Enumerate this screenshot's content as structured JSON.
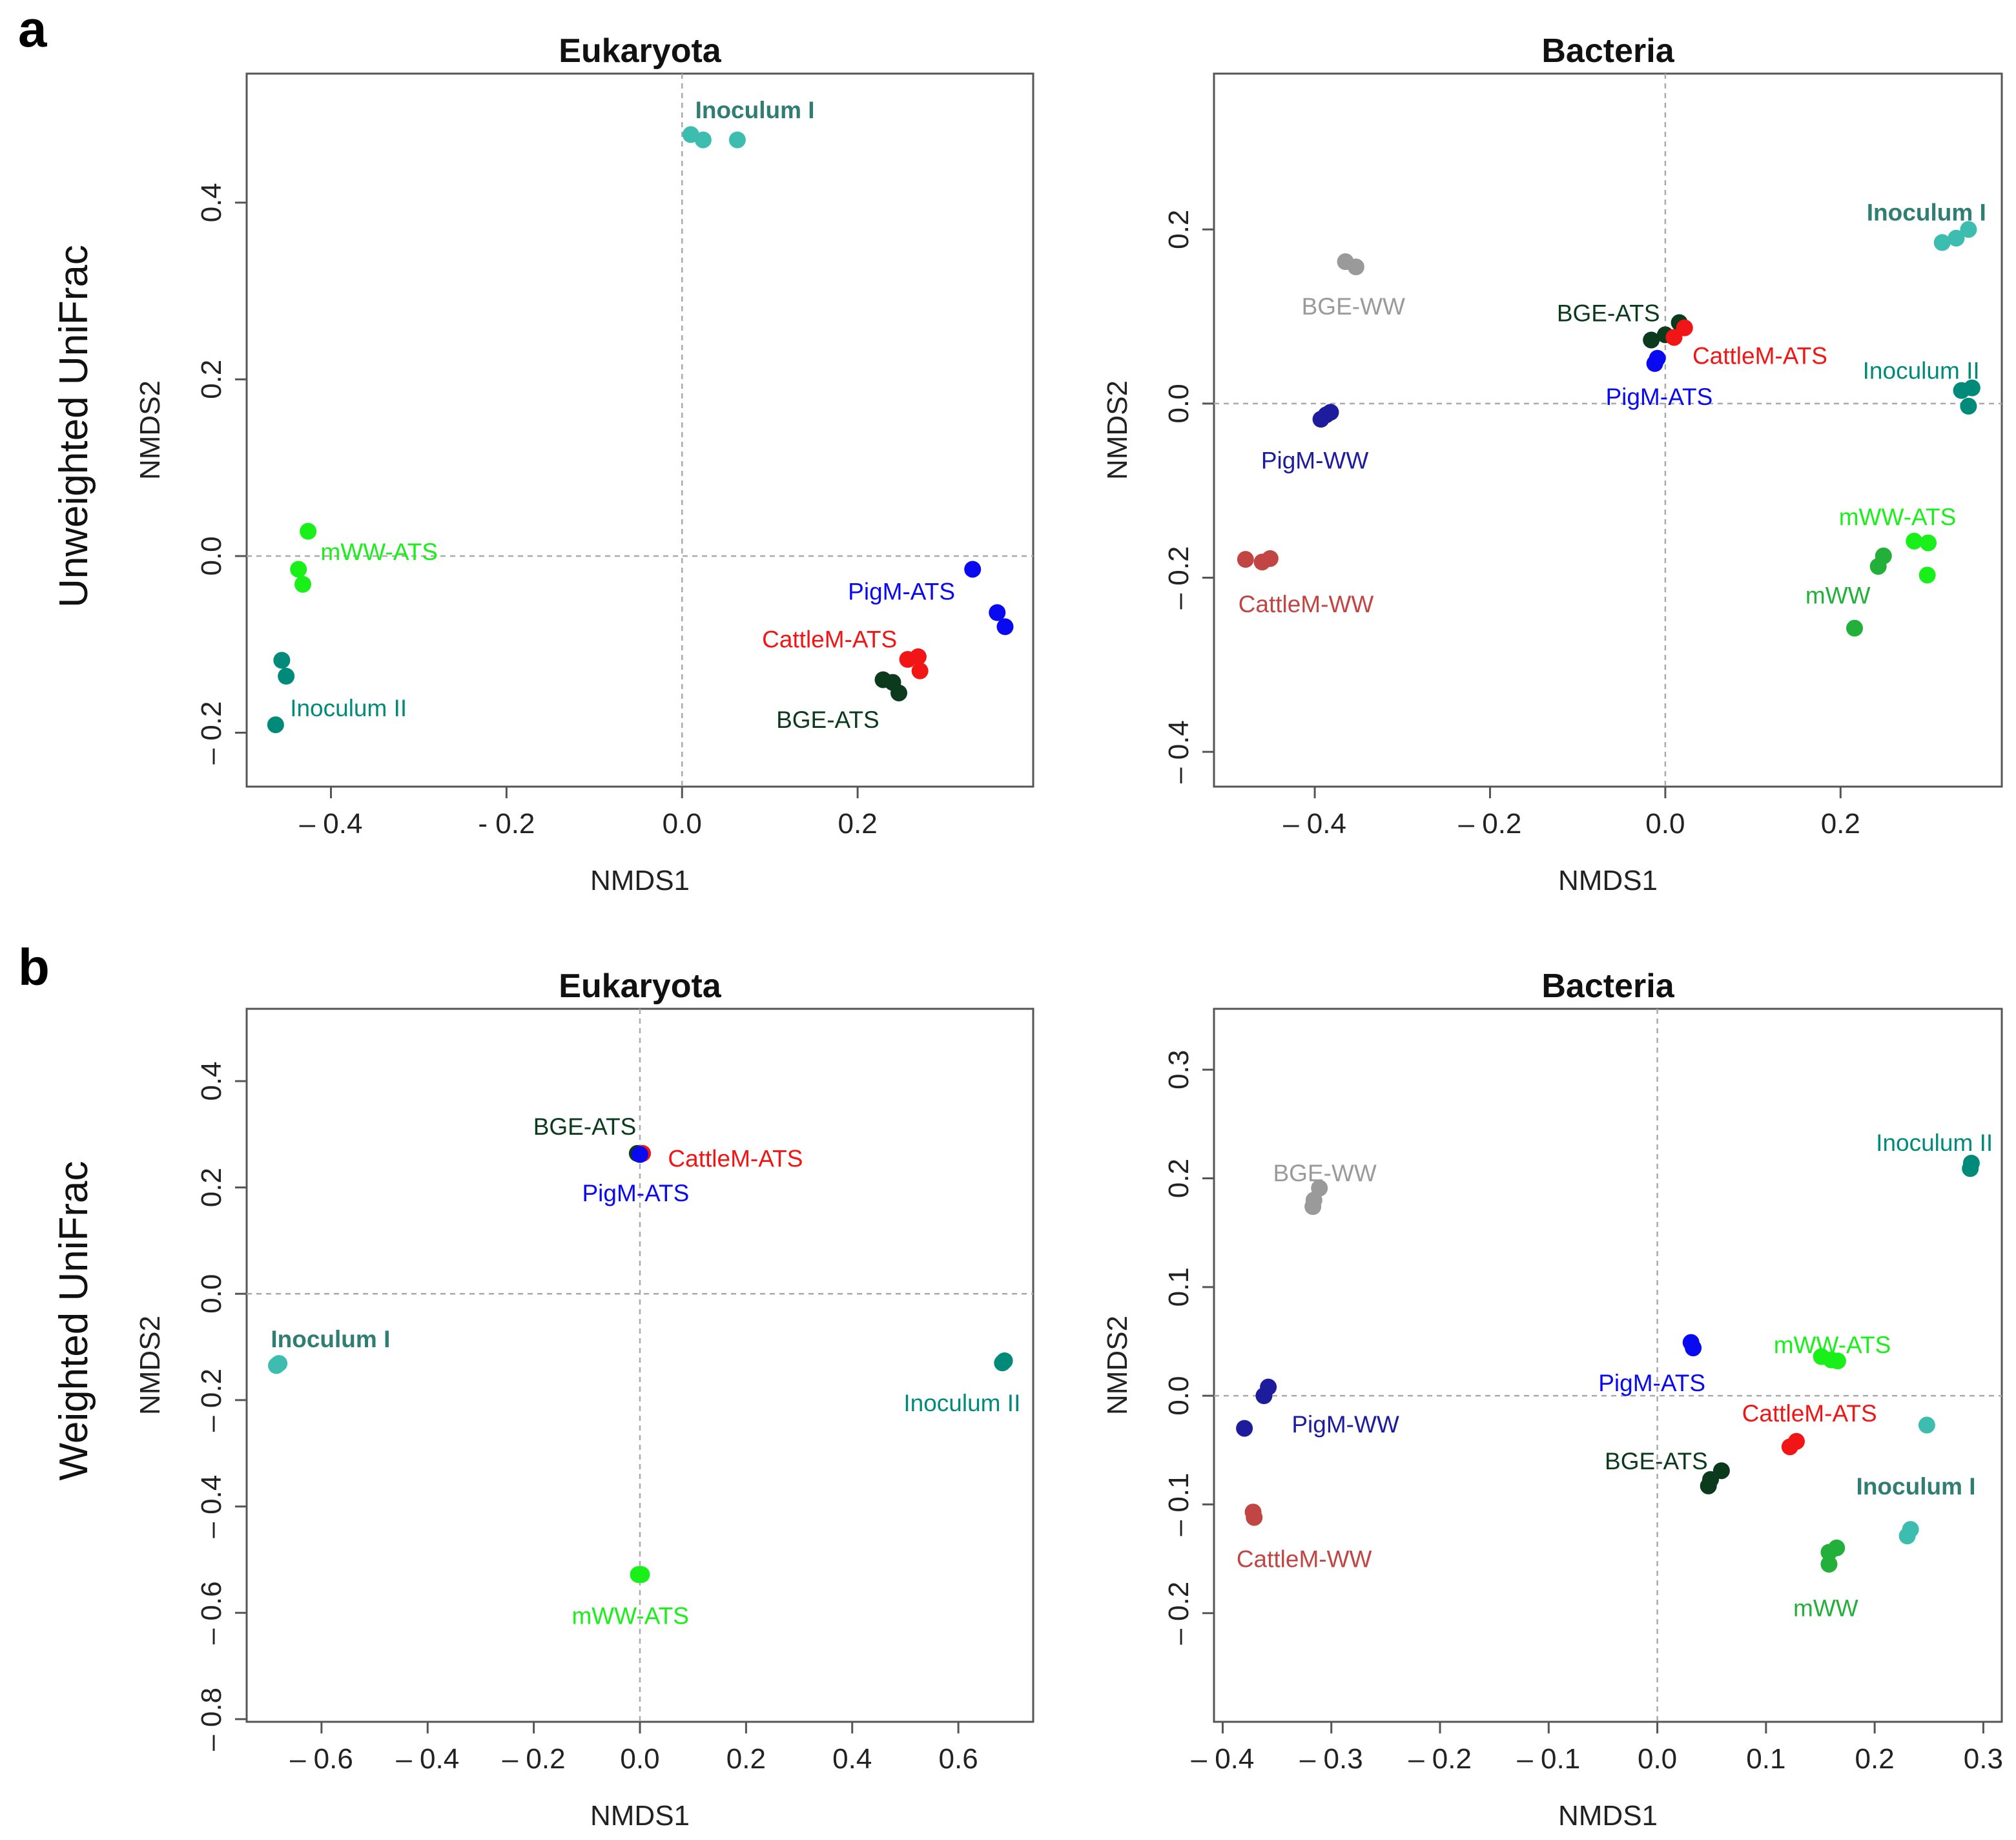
{
  "figure": {
    "panel_labels": [
      "a",
      "b"
    ],
    "row_labels": [
      "Unweighted UniFrac",
      "Weighted UniFrac"
    ]
  },
  "colors": {
    "Inoculum I": "#3dbdb0",
    "Inoculum I label": "#2f7d73",
    "Inoculum II": "#008a7a",
    "mWW-ATS": "#19f019",
    "mWW": "#22b03a",
    "PigM-ATS": "#0a0af0",
    "PigM-WW": "#1c1c9c",
    "CattleM-ATS": "#f21515",
    "CattleM-WW": "#c04543",
    "BGE-ATS": "#0c3a1c",
    "BGE-WW": "#9a9a9a"
  },
  "chart_data": [
    {
      "type": "scatter",
      "title": "Eukaryota",
      "xlabel": "NMDS1",
      "ylabel": "NMDS2",
      "xlim": [
        -0.496,
        0.4
      ],
      "ylim": [
        -0.261,
        0.546
      ],
      "xticks": [
        -0.4,
        -0.2,
        0.0,
        0.2
      ],
      "xticklabels": [
        "– 0.4",
        "- 0.2",
        "0.0",
        "0.2"
      ],
      "yticks": [
        -0.2,
        0.0,
        0.2,
        0.4
      ],
      "yticklabels": [
        "– 0.2",
        "0.0",
        "0.2",
        "0.4"
      ],
      "grid": "dashed lines at 0",
      "series": [
        {
          "name": "Inoculum I",
          "x": [
            0.01,
            0.024,
            0.063
          ],
          "y": [
            0.477,
            0.471,
            0.471
          ],
          "label": {
            "text": "Inoculum I",
            "x": 0.083,
            "y": 0.505,
            "anchor": "middle"
          }
        },
        {
          "name": "mWW-ATS",
          "x": [
            -0.426,
            -0.437,
            -0.432
          ],
          "y": [
            0.028,
            -0.015,
            -0.032
          ],
          "label": {
            "text": "mWW-ATS",
            "x": -0.345,
            "y": 0.005,
            "anchor": "middle"
          }
        },
        {
          "name": "Inoculum II",
          "x": [
            -0.456,
            -0.451,
            -0.463
          ],
          "y": [
            -0.118,
            -0.136,
            -0.191
          ],
          "label": {
            "text": "Inoculum II",
            "x": -0.38,
            "y": -0.172,
            "anchor": "middle"
          }
        },
        {
          "name": "PigM-ATS",
          "x": [
            0.331,
            0.359,
            0.368
          ],
          "y": [
            -0.015,
            -0.064,
            -0.08
          ],
          "label": {
            "text": "PigM-ATS",
            "x": 0.25,
            "y": -0.04,
            "anchor": "middle"
          }
        },
        {
          "name": "CattleM-ATS",
          "x": [
            0.257,
            0.269,
            0.271
          ],
          "y": [
            -0.117,
            -0.114,
            -0.13
          ],
          "label": {
            "text": "CattleM-ATS",
            "x": 0.168,
            "y": -0.094,
            "anchor": "middle"
          }
        },
        {
          "name": "BGE-ATS",
          "x": [
            0.229,
            0.24,
            0.247
          ],
          "y": [
            -0.14,
            -0.143,
            -0.155
          ],
          "label": {
            "text": "BGE-ATS",
            "x": 0.166,
            "y": -0.185,
            "anchor": "middle"
          }
        }
      ]
    },
    {
      "type": "scatter",
      "title": "Bacteria",
      "xlabel": "NMDS1",
      "ylabel": "NMDS2",
      "xlim": [
        -0.515,
        0.384
      ],
      "ylim": [
        -0.44,
        0.379
      ],
      "xticks": [
        -0.4,
        -0.2,
        0.0,
        0.2
      ],
      "xticklabels": [
        "– 0.4",
        "– 0.2",
        "0.0",
        "0.2"
      ],
      "yticks": [
        -0.4,
        -0.2,
        0.0,
        0.2
      ],
      "yticklabels": [
        "– 0.4",
        "– 0.2",
        "0.0",
        "0.2"
      ],
      "grid": "dashed lines at 0",
      "series": [
        {
          "name": "BGE-WW",
          "x": [
            -0.365,
            -0.353
          ],
          "y": [
            0.163,
            0.157
          ],
          "label": {
            "text": "BGE-WW",
            "x": -0.356,
            "y": 0.112,
            "anchor": "middle"
          }
        },
        {
          "name": "PigM-WW",
          "x": [
            -0.393,
            -0.382,
            -0.387
          ],
          "y": [
            -0.018,
            -0.01,
            -0.013
          ],
          "label": {
            "text": "PigM-WW",
            "x": -0.4,
            "y": -0.065,
            "anchor": "middle"
          }
        },
        {
          "name": "CattleM-WW",
          "x": [
            -0.479,
            -0.46,
            -0.451
          ],
          "y": [
            -0.179,
            -0.182,
            -0.178
          ],
          "label": {
            "text": "CattleM-WW",
            "x": -0.41,
            "y": -0.23,
            "anchor": "middle"
          }
        },
        {
          "name": "BGE-ATS",
          "x": [
            -0.016,
            0.0,
            0.016
          ],
          "y": [
            0.073,
            0.079,
            0.093
          ],
          "label": {
            "text": "BGE-ATS",
            "x": -0.065,
            "y": 0.104,
            "anchor": "middle"
          }
        },
        {
          "name": "CattleM-ATS",
          "x": [
            0.01,
            0.022
          ],
          "y": [
            0.076,
            0.087
          ],
          "label": {
            "text": "CattleM-ATS",
            "x": 0.108,
            "y": 0.055,
            "anchor": "middle"
          }
        },
        {
          "name": "PigM-ATS",
          "x": [
            -0.012,
            -0.009
          ],
          "y": [
            0.046,
            0.052
          ],
          "label": {
            "text": "PigM-ATS",
            "x": -0.007,
            "y": 0.008,
            "anchor": "middle"
          }
        },
        {
          "name": "Inoculum I",
          "x": [
            0.316,
            0.332,
            0.346
          ],
          "y": [
            0.185,
            0.19,
            0.2
          ],
          "label": {
            "text": "Inoculum I",
            "x": 0.298,
            "y": 0.22,
            "anchor": "middle"
          }
        },
        {
          "name": "Inoculum II",
          "x": [
            0.338,
            0.35,
            0.346
          ],
          "y": [
            0.015,
            0.018,
            -0.003
          ],
          "label": {
            "text": "Inoculum II",
            "x": 0.292,
            "y": 0.038,
            "anchor": "middle"
          }
        },
        {
          "name": "mWW-ATS",
          "x": [
            0.284,
            0.3,
            0.299
          ],
          "y": [
            -0.158,
            -0.16,
            -0.197
          ],
          "label": {
            "text": "mWW-ATS",
            "x": 0.265,
            "y": -0.13,
            "anchor": "middle"
          }
        },
        {
          "name": "mWW",
          "x": [
            0.249,
            0.243,
            0.216
          ],
          "y": [
            -0.175,
            -0.187,
            -0.258
          ],
          "label": {
            "text": "mWW",
            "x": 0.197,
            "y": -0.22,
            "anchor": "middle"
          }
        }
      ]
    },
    {
      "type": "scatter",
      "title": "Eukaryota",
      "xlabel": "NMDS1",
      "ylabel": "NMDS2",
      "xlim": [
        -0.741,
        0.741
      ],
      "ylim": [
        -0.805,
        0.536
      ],
      "xticks": [
        -0.6,
        -0.4,
        -0.2,
        0.0,
        0.2,
        0.4,
        0.6
      ],
      "xticklabels": [
        "– 0.6",
        "– 0.4",
        "– 0.2",
        "0.0",
        "0.2",
        "0.4",
        "0.6"
      ],
      "yticks": [
        -0.8,
        -0.6,
        -0.4,
        -0.2,
        0.0,
        0.2,
        0.4
      ],
      "yticklabels": [
        "– 0.8",
        "– 0.6",
        "– 0.4",
        "– 0.2",
        "0.0",
        "0.2",
        "0.4"
      ],
      "grid": "dashed lines at 0",
      "series": [
        {
          "name": "BGE-ATS",
          "x": [
            -0.005
          ],
          "y": [
            0.264
          ],
          "label": {
            "text": "BGE-ATS",
            "x": -0.104,
            "y": 0.315,
            "anchor": "middle"
          }
        },
        {
          "name": "CattleM-ATS",
          "x": [
            0.005
          ],
          "y": [
            0.264
          ],
          "label": {
            "text": "CattleM-ATS",
            "x": 0.18,
            "y": 0.255,
            "anchor": "middle"
          }
        },
        {
          "name": "PigM-ATS",
          "x": [
            0.0
          ],
          "y": [
            0.262
          ],
          "label": {
            "text": "PigM-ATS",
            "x": -0.008,
            "y": 0.19,
            "anchor": "middle"
          }
        },
        {
          "name": "Inoculum I",
          "x": [
            -0.685,
            -0.683,
            -0.68
          ],
          "y": [
            -0.135,
            -0.133,
            -0.131
          ],
          "label": {
            "text": "Inoculum I",
            "x": -0.583,
            "y": -0.085,
            "anchor": "middle"
          }
        },
        {
          "name": "Inoculum II",
          "x": [
            0.683,
            0.685,
            0.687
          ],
          "y": [
            -0.13,
            -0.128,
            -0.126
          ],
          "label": {
            "text": "Inoculum II",
            "x": 0.607,
            "y": -0.205,
            "anchor": "middle"
          }
        },
        {
          "name": "mWW-ATS",
          "x": [
            -0.003,
            0.0,
            0.003
          ],
          "y": [
            -0.528,
            -0.528,
            -0.528
          ],
          "label": {
            "text": "mWW-ATS",
            "x": -0.018,
            "y": -0.605,
            "anchor": "middle"
          }
        }
      ]
    },
    {
      "type": "scatter",
      "title": "Bacteria",
      "xlabel": "NMDS1",
      "ylabel": "NMDS2",
      "xlim": [
        -0.408,
        0.317
      ],
      "ylim": [
        -0.3,
        0.356
      ],
      "xticks": [
        -0.4,
        -0.3,
        -0.2,
        -0.1,
        0.0,
        0.1,
        0.2,
        0.3
      ],
      "xticklabels": [
        "– 0.4",
        "– 0.3",
        "– 0.2",
        "– 0.1",
        "0.0",
        "0.1",
        "0.2",
        "0.3"
      ],
      "yticks": [
        -0.2,
        -0.1,
        0.0,
        0.1,
        0.2,
        0.3
      ],
      "yticklabels": [
        "– 0.2",
        "– 0.1",
        "0.0",
        "0.1",
        "0.2",
        "0.3"
      ],
      "grid": "dashed lines at 0",
      "series": [
        {
          "name": "BGE-WW",
          "x": [
            -0.311,
            -0.316,
            -0.317
          ],
          "y": [
            0.191,
            0.18,
            0.174
          ],
          "label": {
            "text": "BGE-WW",
            "x": -0.306,
            "y": 0.205,
            "anchor": "middle"
          }
        },
        {
          "name": "PigM-WW",
          "x": [
            -0.358,
            -0.362,
            -0.38
          ],
          "y": [
            0.008,
            0.0,
            -0.03
          ],
          "label": {
            "text": "PigM-WW",
            "x": -0.287,
            "y": -0.026,
            "anchor": "middle"
          }
        },
        {
          "name": "CattleM-WW",
          "x": [
            -0.372,
            -0.371
          ],
          "y": [
            -0.107,
            -0.112
          ],
          "label": {
            "text": "CattleM-WW",
            "x": -0.325,
            "y": -0.15,
            "anchor": "middle"
          }
        },
        {
          "name": "PigM-ATS",
          "x": [
            0.031,
            0.033
          ],
          "y": [
            0.049,
            0.044
          ],
          "label": {
            "text": "PigM-ATS",
            "x": -0.005,
            "y": 0.012,
            "anchor": "middle"
          }
        },
        {
          "name": "mWW-ATS",
          "x": [
            0.151,
            0.16,
            0.166
          ],
          "y": [
            0.036,
            0.033,
            0.032
          ],
          "label": {
            "text": "mWW-ATS",
            "x": 0.161,
            "y": 0.047,
            "anchor": "middle"
          }
        },
        {
          "name": "CattleM-ATS",
          "x": [
            0.128,
            0.122
          ],
          "y": [
            -0.042,
            -0.047
          ],
          "label": {
            "text": "CattleM-ATS",
            "x": 0.14,
            "y": -0.016,
            "anchor": "middle"
          }
        },
        {
          "name": "BGE-ATS",
          "x": [
            0.059,
            0.049,
            0.047
          ],
          "y": [
            -0.069,
            -0.077,
            -0.083
          ],
          "label": {
            "text": "BGE-ATS",
            "x": -0.001,
            "y": -0.06,
            "anchor": "middle"
          }
        },
        {
          "name": "Inoculum II",
          "x": [
            0.289,
            0.288
          ],
          "y": [
            0.214,
            0.209
          ],
          "label": {
            "text": "Inoculum II",
            "x": 0.255,
            "y": 0.233,
            "anchor": "middle"
          }
        },
        {
          "name": "Inoculum I",
          "x": [
            0.248,
            0.233,
            0.23
          ],
          "y": [
            -0.027,
            -0.123,
            -0.129
          ],
          "label": {
            "text": "Inoculum I",
            "x": 0.238,
            "y": -0.083,
            "anchor": "middle"
          }
        },
        {
          "name": "mWW",
          "x": [
            0.158,
            0.165,
            0.158
          ],
          "y": [
            -0.144,
            -0.14,
            -0.155
          ],
          "label": {
            "text": "mWW",
            "x": 0.155,
            "y": -0.195,
            "anchor": "middle"
          }
        }
      ]
    }
  ]
}
